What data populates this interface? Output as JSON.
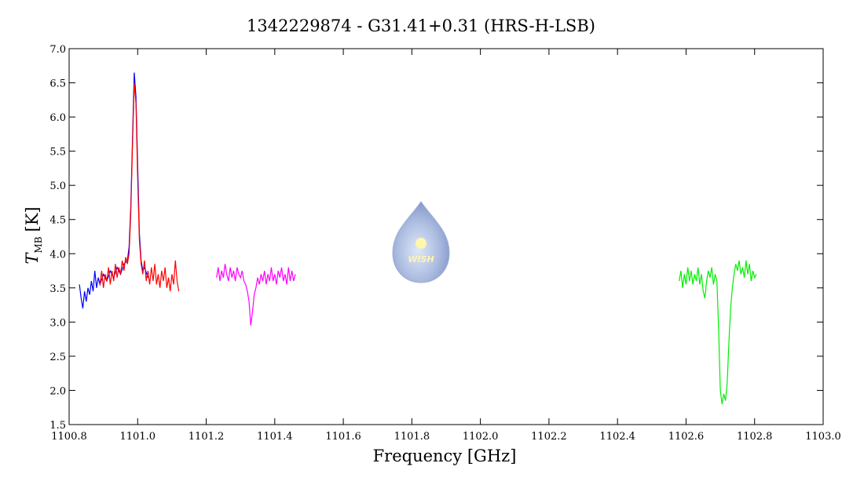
{
  "chart_data": {
    "type": "line",
    "title": "1342229874 - G31.41+0.31 (HRS-H-LSB)",
    "xlabel": "Frequency [GHz]",
    "ylabel": {
      "symbol": "T",
      "subscript": "MB",
      "unit": "[K]"
    },
    "logo_text": "WISH",
    "xlim": [
      1100.8,
      1103.0
    ],
    "xticks": [
      1100.8,
      {
        "value": 1101,
        "label": "1101.0"
      },
      1101.2,
      1101.4,
      1101.6,
      1101.8,
      {
        "value": 1102,
        "label": "1102.0"
      },
      1102.2,
      1102.4,
      1102.6,
      1102.8,
      {
        "value": 1103,
        "label": "1103.0"
      }
    ],
    "ylim": [
      1.5,
      7.0
    ],
    "yticks": [
      1.5,
      {
        "value": 2,
        "label": "2.0"
      },
      2.5,
      {
        "value": 3,
        "label": "3.0"
      },
      3.5,
      {
        "value": 4,
        "label": "4.0"
      },
      4.5,
      {
        "value": 5,
        "label": "5.0"
      },
      5.5,
      {
        "value": 6,
        "label": "6.0"
      },
      6.5,
      {
        "value": 7,
        "label": "7.0"
      }
    ],
    "series": [
      {
        "color": "#0000ff",
        "x": [
          1100.83,
          1100.835,
          1100.84,
          1100.845,
          1100.85,
          1100.855,
          1100.86,
          1100.865,
          1100.87,
          1100.875,
          1100.88,
          1100.885,
          1100.89,
          1100.9,
          1100.91,
          1100.92,
          1100.93,
          1100.94,
          1100.95,
          1100.96,
          1100.97,
          1100.975,
          1100.98,
          1100.985,
          1100.99,
          1100.995,
          1101.0,
          1101.005,
          1101.01,
          1101.015,
          1101.02,
          1101.03
        ],
        "values": [
          3.55,
          3.35,
          3.2,
          3.45,
          3.3,
          3.5,
          3.4,
          3.6,
          3.45,
          3.75,
          3.5,
          3.65,
          3.55,
          3.7,
          3.6,
          3.75,
          3.65,
          3.8,
          3.7,
          3.85,
          3.9,
          4.1,
          4.7,
          5.7,
          6.65,
          6.3,
          5.3,
          4.3,
          3.9,
          3.75,
          3.8,
          3.65
        ]
      },
      {
        "color": "#ff0000",
        "x": [
          1100.89,
          1100.895,
          1100.9,
          1100.905,
          1100.91,
          1100.915,
          1100.92,
          1100.925,
          1100.93,
          1100.935,
          1100.94,
          1100.945,
          1100.95,
          1100.955,
          1100.96,
          1100.965,
          1100.97,
          1100.975,
          1100.98,
          1100.985,
          1100.99,
          1100.995,
          1101.0,
          1101.005,
          1101.01,
          1101.015,
          1101.02,
          1101.025,
          1101.03,
          1101.035,
          1101.04,
          1101.045,
          1101.05,
          1101.055,
          1101.06,
          1101.065,
          1101.07,
          1101.075,
          1101.08,
          1101.085,
          1101.09,
          1101.095,
          1101.1,
          1101.105,
          1101.11,
          1101.115,
          1101.12
        ],
        "values": [
          3.55,
          3.75,
          3.5,
          3.7,
          3.6,
          3.8,
          3.55,
          3.75,
          3.6,
          3.85,
          3.65,
          3.8,
          3.7,
          3.9,
          3.75,
          3.95,
          3.85,
          4.0,
          4.6,
          5.6,
          6.5,
          6.2,
          5.1,
          4.2,
          3.85,
          3.7,
          3.9,
          3.6,
          3.75,
          3.55,
          3.8,
          3.6,
          3.85,
          3.55,
          3.7,
          3.5,
          3.75,
          3.6,
          3.8,
          3.5,
          3.65,
          3.45,
          3.7,
          3.55,
          3.9,
          3.6,
          3.45
        ]
      },
      {
        "color": "#ff00ff",
        "x": [
          1101.23,
          1101.235,
          1101.24,
          1101.245,
          1101.25,
          1101.255,
          1101.26,
          1101.265,
          1101.27,
          1101.275,
          1101.28,
          1101.285,
          1101.29,
          1101.295,
          1101.3,
          1101.305,
          1101.31,
          1101.315,
          1101.32,
          1101.325,
          1101.33,
          1101.335,
          1101.34,
          1101.345,
          1101.35,
          1101.355,
          1101.36,
          1101.365,
          1101.37,
          1101.375,
          1101.38,
          1101.385,
          1101.39,
          1101.395,
          1101.4,
          1101.405,
          1101.41,
          1101.415,
          1101.42,
          1101.425,
          1101.43,
          1101.435,
          1101.44,
          1101.445,
          1101.45,
          1101.455,
          1101.46
        ],
        "values": [
          3.65,
          3.8,
          3.6,
          3.75,
          3.65,
          3.85,
          3.7,
          3.6,
          3.8,
          3.65,
          3.75,
          3.6,
          3.8,
          3.7,
          3.65,
          3.75,
          3.6,
          3.55,
          3.45,
          3.3,
          2.95,
          3.15,
          3.4,
          3.5,
          3.65,
          3.55,
          3.7,
          3.6,
          3.75,
          3.55,
          3.7,
          3.6,
          3.8,
          3.6,
          3.7,
          3.55,
          3.75,
          3.65,
          3.8,
          3.6,
          3.7,
          3.55,
          3.8,
          3.6,
          3.75,
          3.6,
          3.7
        ]
      },
      {
        "color": "#00ee00",
        "x": [
          1102.58,
          1102.585,
          1102.59,
          1102.595,
          1102.6,
          1102.605,
          1102.61,
          1102.615,
          1102.62,
          1102.625,
          1102.63,
          1102.635,
          1102.64,
          1102.645,
          1102.65,
          1102.655,
          1102.66,
          1102.665,
          1102.67,
          1102.675,
          1102.68,
          1102.685,
          1102.69,
          1102.695,
          1102.7,
          1102.705,
          1102.71,
          1102.715,
          1102.72,
          1102.725,
          1102.73,
          1102.735,
          1102.74,
          1102.745,
          1102.75,
          1102.755,
          1102.76,
          1102.765,
          1102.77,
          1102.775,
          1102.78,
          1102.785,
          1102.79,
          1102.795,
          1102.8,
          1102.805
        ],
        "values": [
          3.6,
          3.75,
          3.5,
          3.7,
          3.55,
          3.8,
          3.6,
          3.75,
          3.55,
          3.7,
          3.6,
          3.8,
          3.55,
          3.7,
          3.45,
          3.35,
          3.6,
          3.75,
          3.65,
          3.8,
          3.55,
          3.7,
          3.6,
          2.9,
          2.0,
          1.8,
          1.95,
          1.85,
          2.1,
          2.7,
          3.2,
          3.5,
          3.7,
          3.85,
          3.75,
          3.9,
          3.7,
          3.8,
          3.65,
          3.9,
          3.7,
          3.85,
          3.6,
          3.75,
          3.65,
          3.7
        ]
      }
    ]
  }
}
